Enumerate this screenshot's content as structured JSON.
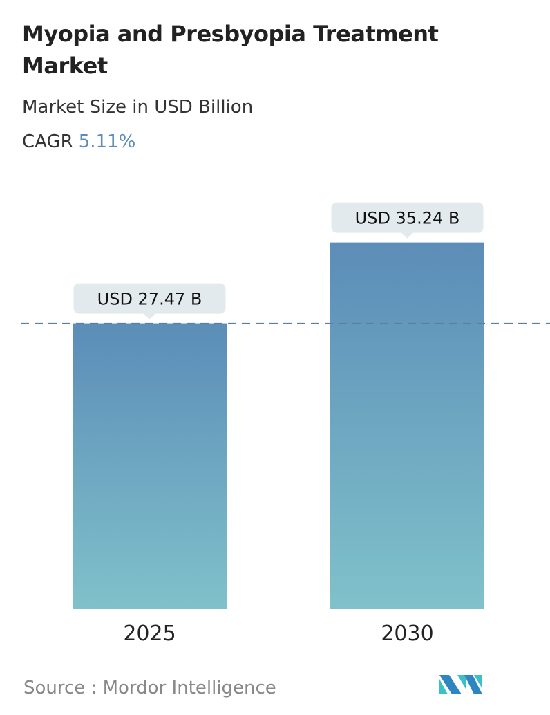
{
  "header": {
    "title": "Myopia and Presbyopia Treatment Market",
    "subtitle": "Market Size in USD Billion",
    "cagr_label": "CAGR",
    "cagr_value": "5.11%"
  },
  "chart_data": {
    "type": "bar",
    "categories": [
      "2025",
      "2030"
    ],
    "values": [
      27.47,
      35.24
    ],
    "data_labels": [
      "USD 27.47 B",
      "USD 35.24 B"
    ],
    "title": "Myopia and Presbyopia Treatment Market",
    "ylabel": "Market Size in USD Billion",
    "reference_line": 27.47,
    "grid": false,
    "colors": {
      "bar_top": "#5b8db8",
      "bar_bottom": "#80c1ca",
      "label_bg": "#e3eaed",
      "ref_line": "#5b7fa0"
    }
  },
  "footer": {
    "source": "Source :  Mordor Intelligence",
    "logo": "Mordor Intelligence"
  }
}
